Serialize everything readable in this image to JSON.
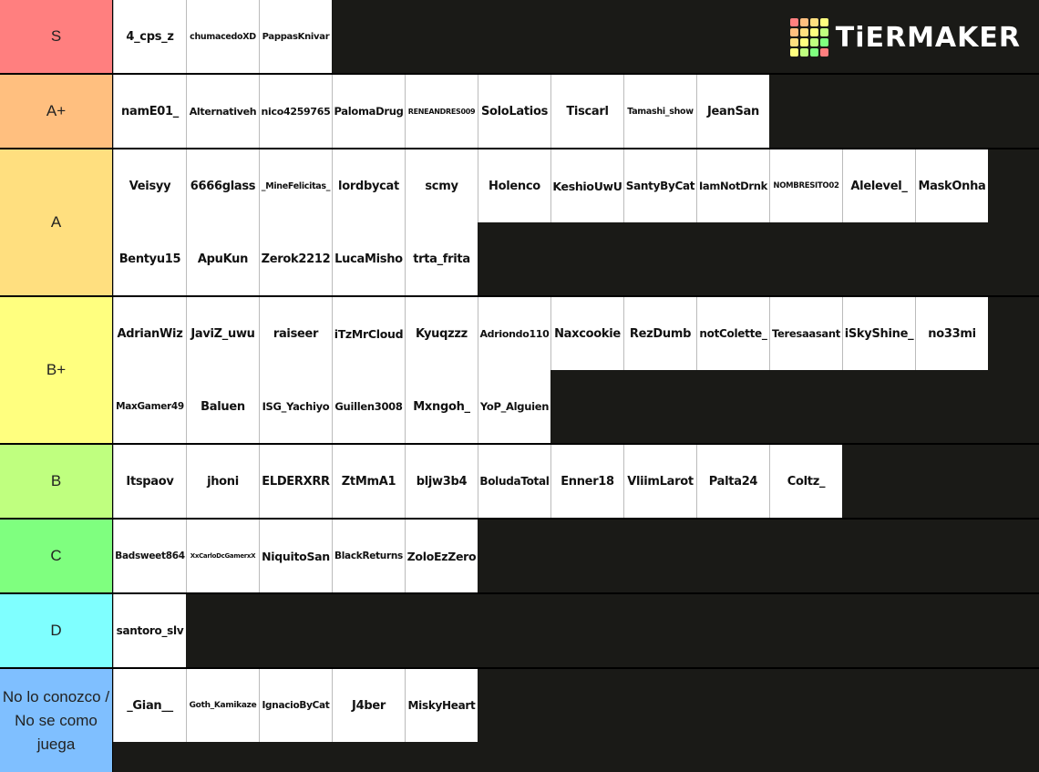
{
  "logo": {
    "text": "TiERMAKER",
    "colors": [
      "#ff7f7f",
      "#ffbf7f",
      "#ffdf7f",
      "#ffff7f",
      "#bfff7f",
      "#7fff7f"
    ]
  },
  "tiers": [
    {
      "label": "S",
      "color": "#ff7f7f",
      "items": [
        "4_cps_z",
        "chumacedoXD",
        "PappasKnivar"
      ]
    },
    {
      "label": "A+",
      "color": "#ffbf7f",
      "items": [
        "namE01_",
        "Alternativeh",
        "nico4259765",
        "PalomaDrug",
        "RENEANDRES009",
        "SoloLatios",
        "Tiscarl",
        "Tamashi_show",
        "JeanSan"
      ]
    },
    {
      "label": "A",
      "color": "#ffdf7f",
      "items": [
        "Veisyy",
        "6666glass",
        "_MineFelicitas_",
        "lordbycat",
        "scmy",
        "Holenco",
        "KeshioUwU",
        "SantyByCat",
        "IamNotDrnk",
        "NOMBRESITO02",
        "Alelevel_",
        "MaskOnha",
        "Bentyu15",
        "ApuKun",
        "Zerok2212",
        "LucaMisho",
        "trta_frita"
      ]
    },
    {
      "label": "B+",
      "color": "#ffff7f",
      "items": [
        "AdrianWiz",
        "JaviZ_uwu",
        "raiseer",
        "iTzMrCloud",
        "Kyuqzzz",
        "Adriondo110",
        "Naxcookie",
        "RezDumb",
        "notColette_",
        "Teresaasant",
        "iSkyShine_",
        "no33mi",
        "MaxGamer49",
        "Baluen",
        "ISG_Yachiyo",
        "Guillen3008",
        "Mxngoh_",
        "YoP_Alguien"
      ]
    },
    {
      "label": "B",
      "color": "#bfff7f",
      "items": [
        "Itspaov",
        "jhoni",
        "ELDERXRR",
        "ZtMmA1",
        "bljw3b4",
        "BoludaTotal",
        "Enner18",
        "VliimLarot",
        "Palta24",
        "Coltz_"
      ]
    },
    {
      "label": "C",
      "color": "#7fff7f",
      "items": [
        "Badsweet864",
        "XxCarloDcGamerxX",
        "NiquitoSan",
        "BlackReturns",
        "ZoloEzZero"
      ]
    },
    {
      "label": "D",
      "color": "#7fffff",
      "items": [
        "santoro_slv"
      ]
    },
    {
      "label": "No lo conozco / No se como juega",
      "color": "#7fbfff",
      "items": [
        "_Gian__",
        "Goth_Kamikaze",
        "IgnacioByCat",
        "J4ber",
        "MiskyHeart"
      ]
    }
  ]
}
